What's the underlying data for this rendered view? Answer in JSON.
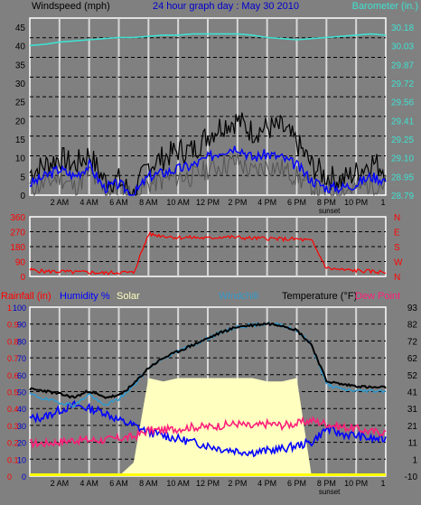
{
  "header": {
    "left_label": "Windspeed (mph)",
    "center_title": "24 hour graph day : May 30 2010",
    "right_label": "Barometer (in.)"
  },
  "colors": {
    "background": "#808080",
    "plot_bg": "#808080",
    "grid_vertical": "#d8d8d8",
    "grid_dashed": "#000000",
    "wind_avg": "#0000ff",
    "wind_gust": "#000000",
    "wind_grey": "#555555",
    "barometer": "#40e0d0",
    "direction": "#ff0000",
    "humidity": "#0000ff",
    "solar_fill": "#ffffc0",
    "windchill": "#3399cc",
    "temperature": "#000000",
    "dewpoint": "#ff1f7a",
    "rain": "#ffff00",
    "frame": "#ffffff",
    "text_dark": "#000000",
    "text_blue": "#0000cc",
    "text_cyan": "#40e0d0",
    "text_red": "#ff0000"
  },
  "time_axis": {
    "ticks": [
      "2 AM",
      "4 AM",
      "6 AM",
      "8 AM",
      "10 AM",
      "12 PM",
      "2 PM",
      "4 PM",
      "6 PM",
      "8 PM",
      "10 PM"
    ],
    "sunset_label": "sunset",
    "end_label": "1"
  },
  "chart_data": [
    {
      "type": "line",
      "title": "24 hour graph day : May 30 2010",
      "left_axis_label": "Windspeed (mph)",
      "right_axis_label": "Barometer (in.)",
      "left_ylim": [
        0,
        45
      ],
      "left_ticks": [
        "0",
        "5",
        "10",
        "15",
        "20",
        "25",
        "30",
        "35",
        "40",
        "45"
      ],
      "right_ticks": [
        "28.79",
        "28.95",
        "29.10",
        "29.25",
        "29.41",
        "29.56",
        "29.72",
        "29.87",
        "30.03",
        "30.18"
      ],
      "right_ylim": [
        28.79,
        30.25
      ],
      "x_hours": [
        0,
        1,
        2,
        3,
        4,
        5,
        6,
        7,
        8,
        9,
        10,
        11,
        12,
        13,
        14,
        15,
        16,
        17,
        18,
        19,
        20,
        21,
        22,
        23,
        24
      ],
      "series": [
        {
          "key": "gust",
          "values": [
            6,
            8,
            10,
            8,
            11,
            4,
            4,
            0,
            8,
            10,
            12,
            12,
            16,
            19,
            20,
            17,
            18,
            18,
            14,
            8,
            5,
            4,
            6,
            9,
            7
          ]
        },
        {
          "key": "avg",
          "values": [
            3,
            5,
            7,
            5,
            8,
            2,
            3,
            0,
            5,
            6,
            7,
            8,
            10,
            12,
            13,
            10,
            11,
            10,
            8,
            4,
            2,
            2,
            3,
            5,
            4
          ]
        },
        {
          "key": "grey",
          "values": [
            2,
            3,
            5,
            2,
            6,
            1,
            2,
            0,
            3,
            4,
            5,
            5,
            7,
            8,
            9,
            6,
            8,
            7,
            5,
            2,
            1,
            1,
            2,
            3,
            3
          ]
        },
        {
          "key": "barometer",
          "values": [
            30.09,
            30.1,
            30.12,
            30.13,
            30.14,
            30.15,
            30.16,
            30.16,
            30.17,
            30.18,
            30.18,
            30.19,
            30.19,
            30.19,
            30.19,
            30.18,
            30.16,
            30.15,
            30.14,
            30.15,
            30.16,
            30.17,
            30.18,
            30.19,
            30.18
          ]
        }
      ]
    },
    {
      "type": "line",
      "left_ticks": [
        "0",
        "90",
        "180",
        "270",
        "360"
      ],
      "right_ticks": [
        "N",
        "W",
        "S",
        "E",
        "N"
      ],
      "ylim": [
        0,
        360
      ],
      "x_hours": [
        0,
        1,
        2,
        3,
        4,
        5,
        6,
        7,
        8,
        9,
        10,
        11,
        12,
        13,
        14,
        15,
        16,
        17,
        18,
        19,
        20,
        21,
        22,
        23,
        24
      ],
      "series": [
        {
          "key": "direction",
          "values": [
            40,
            30,
            30,
            25,
            25,
            20,
            25,
            22,
            255,
            245,
            235,
            235,
            230,
            240,
            235,
            230,
            230,
            225,
            225,
            215,
            50,
            40,
            35,
            30,
            25
          ]
        }
      ]
    },
    {
      "type": "line",
      "labels": {
        "rainfall": "Rainfall (in)",
        "humidity": "Humidity %",
        "solar": "Solar",
        "windchill": "Windchill",
        "temperature": "Temperature (°F)",
        "dewpoint": "Dew Point"
      },
      "rain_ticks": [
        "0",
        "0.1",
        "0.2",
        "0.3",
        "0.4",
        "0.5",
        "0.6",
        "0.7",
        "0.8",
        "0.9",
        "1"
      ],
      "humidity_ticks": [
        "0",
        "10",
        "20",
        "30",
        "40",
        "50",
        "60",
        "70",
        "80",
        "90",
        "100"
      ],
      "temp_ticks": [
        "-10",
        "1",
        "11",
        "21",
        "31",
        "41",
        "52",
        "62",
        "72",
        "82",
        "93"
      ],
      "temp_ylim": [
        -10,
        93
      ],
      "x_hours": [
        0,
        1,
        2,
        3,
        4,
        5,
        6,
        7,
        8,
        9,
        10,
        11,
        12,
        13,
        14,
        15,
        16,
        17,
        18,
        19,
        20,
        21,
        22,
        23,
        24
      ],
      "series": [
        {
          "key": "temperature",
          "values": [
            43,
            42,
            40,
            38,
            42,
            38,
            39,
            46,
            56,
            62,
            66,
            70,
            74,
            78,
            81,
            82,
            83,
            82,
            79,
            70,
            48,
            46,
            45,
            44,
            44
          ]
        },
        {
          "key": "windchill",
          "values": [
            40,
            37,
            35,
            33,
            40,
            33,
            37,
            45,
            56,
            62,
            66,
            70,
            74,
            78,
            81,
            82,
            83,
            82,
            79,
            70,
            46,
            43,
            42,
            42,
            42
          ]
        },
        {
          "key": "humidity",
          "values": [
            34,
            35,
            39,
            42,
            40,
            38,
            33,
            30,
            26,
            24,
            22,
            20,
            18,
            16,
            15,
            14,
            15,
            16,
            18,
            20,
            28,
            25,
            24,
            22,
            22
          ]
        },
        {
          "key": "dewpoint",
          "values": [
            10,
            10,
            11,
            12,
            12,
            12,
            13,
            14,
            18,
            18,
            19,
            20,
            20,
            21,
            22,
            20,
            22,
            21,
            22,
            24,
            22,
            20,
            19,
            17,
            17
          ]
        },
        {
          "key": "solar",
          "values": [
            0,
            0,
            0,
            0,
            0,
            0,
            0,
            8,
            58,
            56,
            58,
            58,
            58,
            58,
            58,
            58,
            56,
            56,
            58,
            0,
            0,
            0,
            0,
            0,
            0
          ]
        }
      ]
    }
  ]
}
